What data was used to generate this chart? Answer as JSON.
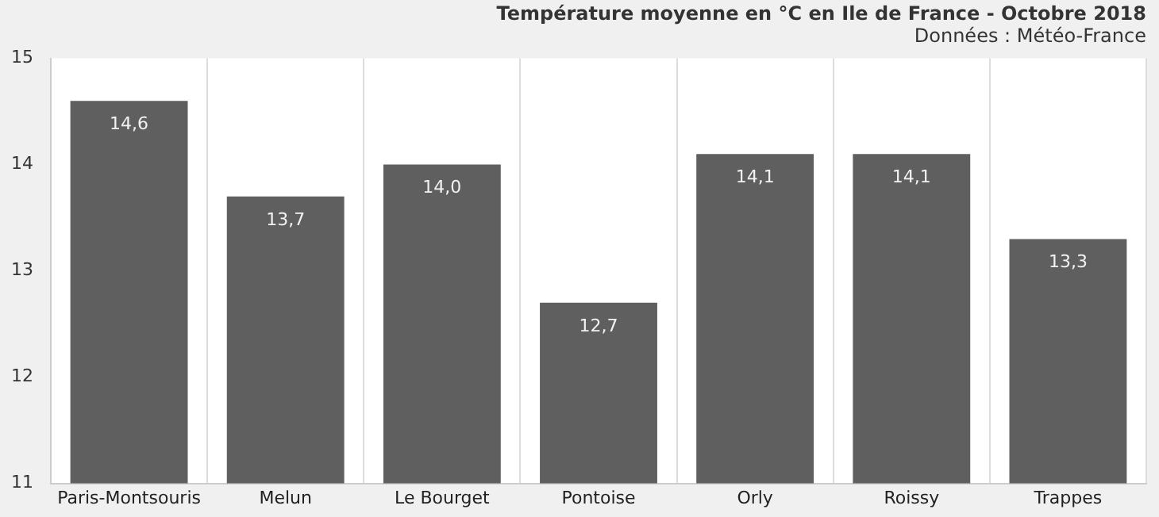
{
  "chart_data": {
    "type": "bar",
    "title": "Température moyenne en °C en Ile de France - Octobre 2018",
    "subtitle": "Données : Météo-France",
    "categories": [
      "Paris-Montsouris",
      "Melun",
      "Le Bourget",
      "Pontoise",
      "Orly",
      "Roissy",
      "Trappes"
    ],
    "values": [
      14.6,
      13.7,
      14.0,
      12.7,
      14.1,
      14.1,
      13.3
    ],
    "value_labels": [
      "14,6",
      "13,7",
      "14,0",
      "12,7",
      "14,1",
      "14,1",
      "13,3"
    ],
    "color": "#5f5f5f",
    "ylim": [
      11,
      15
    ],
    "yticks": [
      11,
      12,
      13,
      14,
      15
    ],
    "grid": "x",
    "legend": false
  }
}
